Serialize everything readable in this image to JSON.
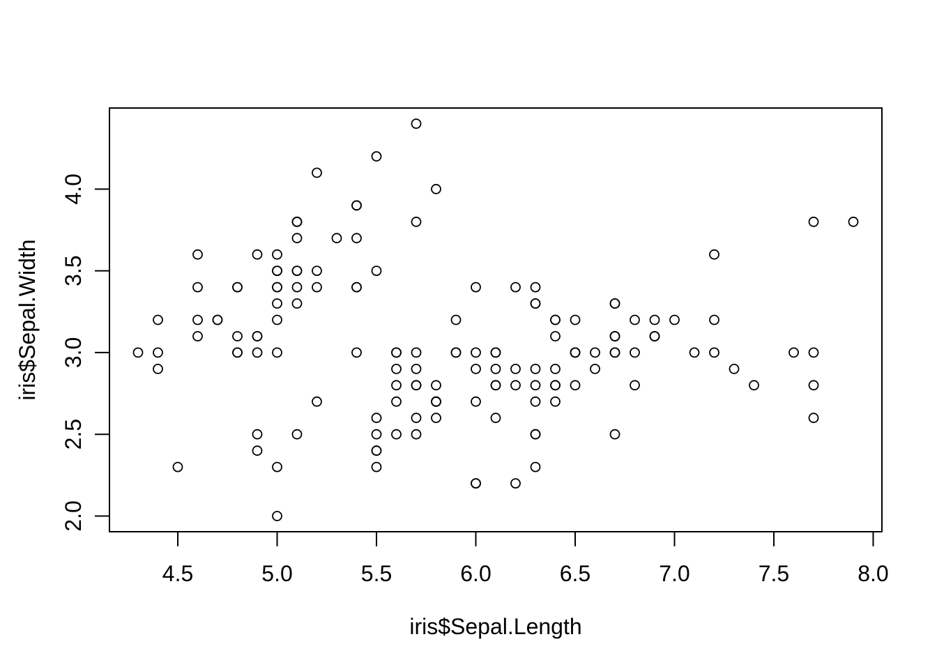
{
  "chart_data": {
    "type": "scatter",
    "title": "",
    "xlabel": "iris$Sepal.Length",
    "ylabel": "iris$Sepal.Width",
    "marker": "open-circle",
    "marker_color": "#000000",
    "background_color": "#ffffff",
    "grid": "off",
    "legend": "none",
    "xlim": [
      4.156,
      8.044
    ],
    "ylim": [
      1.904,
      4.496
    ],
    "x_axis": {
      "tick_values": [
        4.5,
        5.0,
        5.5,
        6.0,
        6.5,
        7.0,
        7.5,
        8.0
      ],
      "tick_labels": [
        "4.5",
        "5.0",
        "5.5",
        "6.0",
        "6.5",
        "7.0",
        "7.5",
        "8.0"
      ]
    },
    "y_axis": {
      "tick_values": [
        2.0,
        2.5,
        3.0,
        3.5,
        4.0
      ],
      "tick_labels": [
        "2.0",
        "2.5",
        "3.0",
        "3.5",
        "4.0"
      ]
    },
    "points": [
      [
        5.1,
        3.5
      ],
      [
        4.9,
        3.0
      ],
      [
        4.7,
        3.2
      ],
      [
        4.6,
        3.1
      ],
      [
        5.0,
        3.6
      ],
      [
        5.4,
        3.9
      ],
      [
        4.6,
        3.4
      ],
      [
        5.0,
        3.4
      ],
      [
        4.4,
        2.9
      ],
      [
        4.9,
        3.1
      ],
      [
        5.4,
        3.7
      ],
      [
        4.8,
        3.4
      ],
      [
        4.8,
        3.0
      ],
      [
        4.3,
        3.0
      ],
      [
        5.8,
        4.0
      ],
      [
        5.7,
        4.4
      ],
      [
        5.4,
        3.9
      ],
      [
        5.1,
        3.5
      ],
      [
        5.7,
        3.8
      ],
      [
        5.1,
        3.8
      ],
      [
        5.4,
        3.4
      ],
      [
        5.1,
        3.7
      ],
      [
        4.6,
        3.6
      ],
      [
        5.1,
        3.3
      ],
      [
        4.8,
        3.4
      ],
      [
        5.0,
        3.0
      ],
      [
        5.0,
        3.4
      ],
      [
        5.2,
        3.5
      ],
      [
        5.2,
        3.4
      ],
      [
        4.7,
        3.2
      ],
      [
        4.8,
        3.1
      ],
      [
        5.4,
        3.4
      ],
      [
        5.2,
        4.1
      ],
      [
        5.5,
        4.2
      ],
      [
        4.9,
        3.1
      ],
      [
        5.0,
        3.2
      ],
      [
        5.5,
        3.5
      ],
      [
        4.9,
        3.6
      ],
      [
        4.4,
        3.0
      ],
      [
        5.1,
        3.4
      ],
      [
        5.0,
        3.5
      ],
      [
        4.5,
        2.3
      ],
      [
        4.4,
        3.2
      ],
      [
        5.0,
        3.5
      ],
      [
        5.1,
        3.8
      ],
      [
        4.8,
        3.0
      ],
      [
        5.1,
        3.8
      ],
      [
        4.6,
        3.2
      ],
      [
        5.3,
        3.7
      ],
      [
        5.0,
        3.3
      ],
      [
        7.0,
        3.2
      ],
      [
        6.4,
        3.2
      ],
      [
        6.9,
        3.1
      ],
      [
        5.5,
        2.3
      ],
      [
        6.5,
        2.8
      ],
      [
        5.7,
        2.8
      ],
      [
        6.3,
        3.3
      ],
      [
        4.9,
        2.4
      ],
      [
        6.6,
        2.9
      ],
      [
        5.2,
        2.7
      ],
      [
        5.0,
        2.0
      ],
      [
        5.9,
        3.0
      ],
      [
        6.0,
        2.2
      ],
      [
        6.1,
        2.9
      ],
      [
        5.6,
        2.9
      ],
      [
        6.7,
        3.1
      ],
      [
        5.6,
        3.0
      ],
      [
        5.8,
        2.7
      ],
      [
        6.2,
        2.2
      ],
      [
        5.6,
        2.5
      ],
      [
        5.9,
        3.2
      ],
      [
        6.1,
        2.8
      ],
      [
        6.3,
        2.5
      ],
      [
        6.1,
        2.8
      ],
      [
        6.4,
        2.9
      ],
      [
        6.6,
        3.0
      ],
      [
        6.8,
        2.8
      ],
      [
        6.7,
        3.0
      ],
      [
        6.0,
        2.9
      ],
      [
        5.7,
        2.6
      ],
      [
        5.5,
        2.4
      ],
      [
        5.5,
        2.4
      ],
      [
        5.8,
        2.7
      ],
      [
        6.0,
        2.7
      ],
      [
        5.4,
        3.0
      ],
      [
        6.0,
        3.4
      ],
      [
        6.7,
        3.1
      ],
      [
        6.3,
        2.3
      ],
      [
        5.6,
        3.0
      ],
      [
        5.5,
        2.5
      ],
      [
        5.5,
        2.6
      ],
      [
        6.1,
        3.0
      ],
      [
        5.8,
        2.6
      ],
      [
        5.0,
        2.3
      ],
      [
        5.6,
        2.7
      ],
      [
        5.7,
        3.0
      ],
      [
        5.7,
        2.9
      ],
      [
        6.2,
        2.9
      ],
      [
        5.1,
        2.5
      ],
      [
        5.7,
        2.8
      ],
      [
        6.3,
        3.3
      ],
      [
        5.8,
        2.7
      ],
      [
        7.1,
        3.0
      ],
      [
        6.3,
        2.9
      ],
      [
        6.5,
        3.0
      ],
      [
        7.6,
        3.0
      ],
      [
        4.9,
        2.5
      ],
      [
        7.3,
        2.9
      ],
      [
        6.7,
        2.5
      ],
      [
        7.2,
        3.6
      ],
      [
        6.5,
        3.2
      ],
      [
        6.4,
        2.7
      ],
      [
        6.8,
        3.0
      ],
      [
        5.7,
        2.5
      ],
      [
        5.8,
        2.8
      ],
      [
        6.4,
        3.2
      ],
      [
        6.5,
        3.0
      ],
      [
        7.7,
        3.8
      ],
      [
        7.7,
        2.6
      ],
      [
        6.0,
        2.2
      ],
      [
        6.9,
        3.2
      ],
      [
        5.6,
        2.8
      ],
      [
        7.7,
        2.8
      ],
      [
        6.3,
        2.7
      ],
      [
        6.7,
        3.3
      ],
      [
        7.2,
        3.2
      ],
      [
        6.2,
        2.8
      ],
      [
        6.1,
        3.0
      ],
      [
        6.4,
        2.8
      ],
      [
        7.2,
        3.0
      ],
      [
        7.4,
        2.8
      ],
      [
        7.9,
        3.8
      ],
      [
        6.4,
        2.8
      ],
      [
        6.3,
        2.8
      ],
      [
        6.1,
        2.6
      ],
      [
        7.7,
        3.0
      ],
      [
        6.3,
        3.4
      ],
      [
        6.4,
        3.1
      ],
      [
        6.0,
        3.0
      ],
      [
        6.9,
        3.1
      ],
      [
        6.7,
        3.1
      ],
      [
        6.9,
        3.1
      ],
      [
        5.8,
        2.7
      ],
      [
        6.8,
        3.2
      ],
      [
        6.7,
        3.3
      ],
      [
        6.7,
        3.0
      ],
      [
        6.3,
        2.5
      ],
      [
        6.5,
        3.0
      ],
      [
        6.2,
        3.4
      ],
      [
        5.9,
        3.0
      ]
    ]
  }
}
